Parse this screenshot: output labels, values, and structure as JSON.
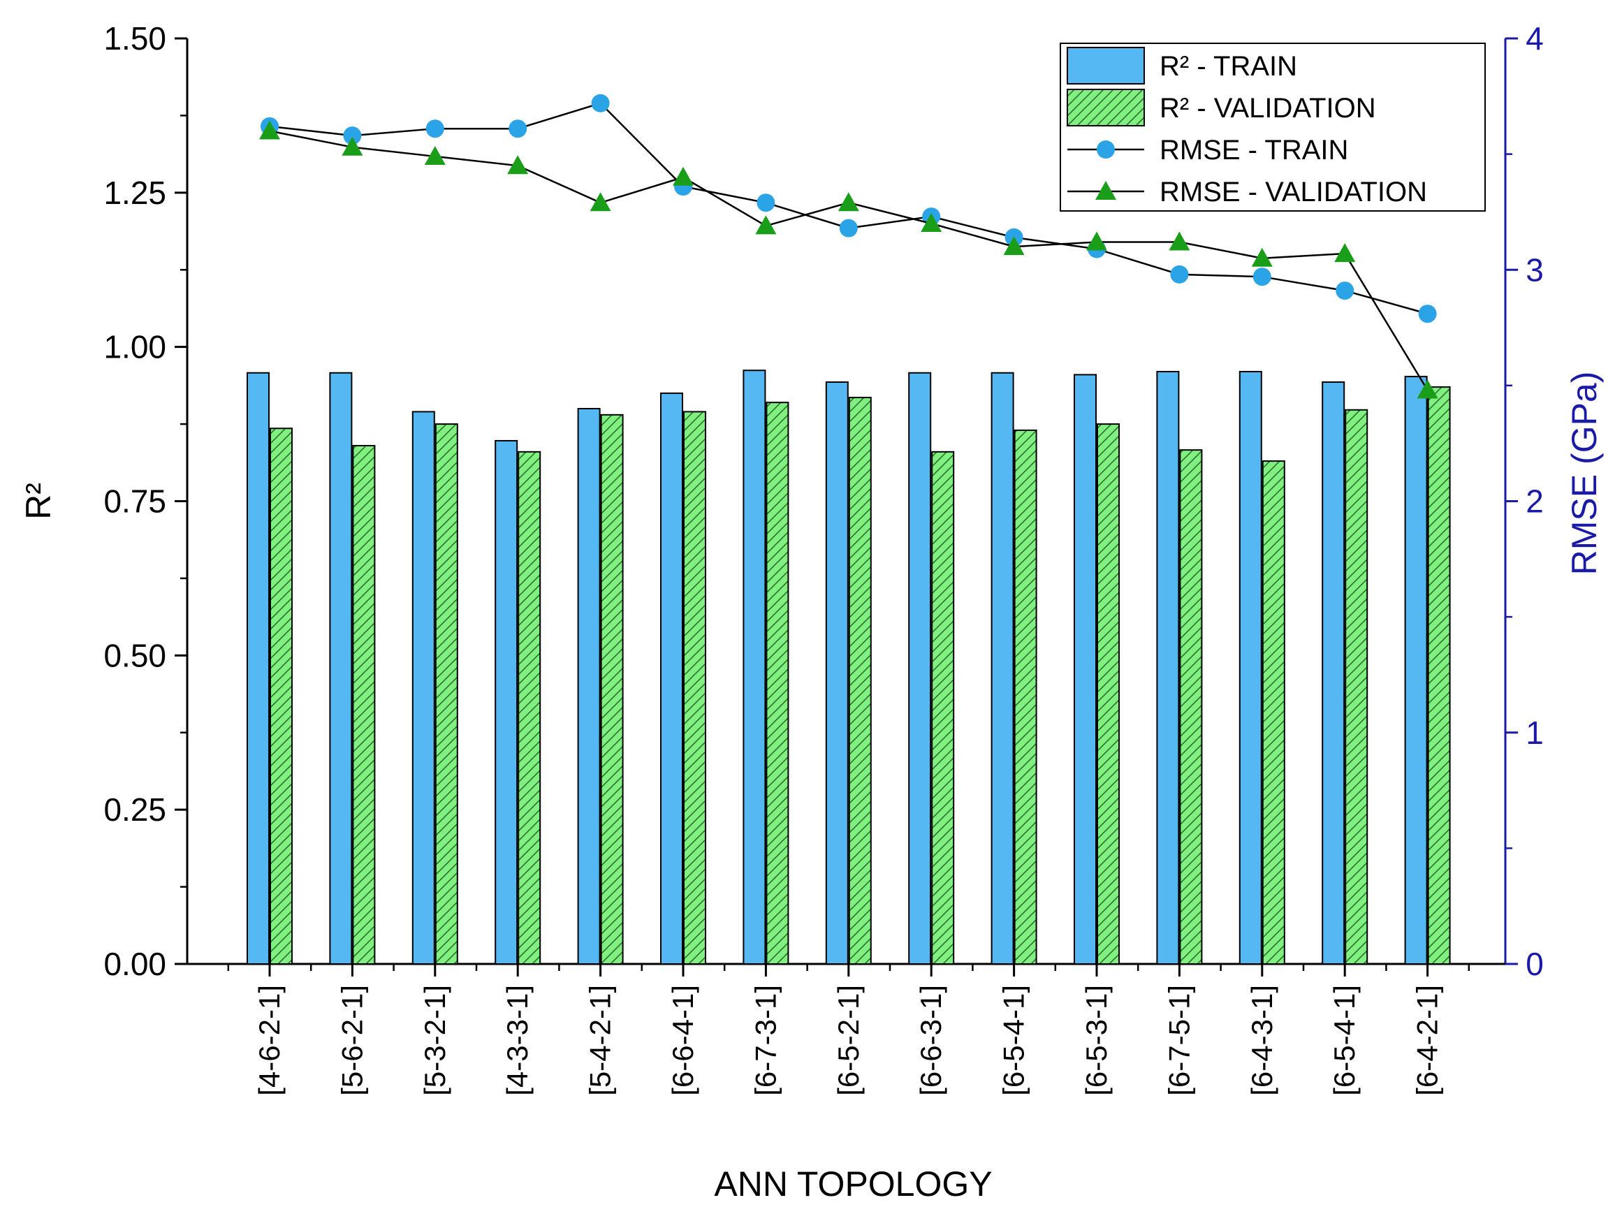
{
  "chart_data": {
    "type": "bar+line",
    "title": "",
    "xlabel": "ANN TOPOLOGY",
    "ylabel_left": "R²",
    "ylabel_right": "RMSE (GPa)",
    "ylim_left": [
      0,
      1.5
    ],
    "ylim_right": [
      0,
      4
    ],
    "left_ticks": [
      "0.00",
      "0.25",
      "0.50",
      "0.75",
      "1.00",
      "1.25",
      "1.50"
    ],
    "right_ticks": [
      "0",
      "1",
      "2",
      "3",
      "4"
    ],
    "categories": [
      "[4-6-2-1]",
      "[5-6-2-1]",
      "[5-3-2-1]",
      "[4-3-3-1]",
      "[5-4-2-1]",
      "[6-6-4-1]",
      "[6-7-3-1]",
      "[6-5-2-1]",
      "[6-6-3-1]",
      "[6-5-4-1]",
      "[6-5-3-1]",
      "[6-7-5-1]",
      "[6-4-3-1]",
      "[6-5-4-1]",
      "[6-4-2-1]"
    ],
    "series": [
      {
        "name": "R² - TRAIN",
        "axis": "left",
        "kind": "bar",
        "color": "#56b8f2",
        "values": [
          0.958,
          0.958,
          0.895,
          0.848,
          0.9,
          0.925,
          0.962,
          0.943,
          0.958,
          0.958,
          0.955,
          0.96,
          0.96,
          0.943,
          0.952
        ]
      },
      {
        "name": "R² - VALIDATION",
        "axis": "left",
        "kind": "bar",
        "color": "#80f080",
        "values": [
          0.868,
          0.84,
          0.875,
          0.83,
          0.89,
          0.895,
          0.91,
          0.918,
          0.83,
          0.865,
          0.875,
          0.833,
          0.815,
          0.898,
          0.935
        ]
      },
      {
        "name": "RMSE - TRAIN",
        "axis": "right",
        "kind": "line",
        "marker": "circle",
        "color": "#2aa4e6",
        "values": [
          3.62,
          3.58,
          3.61,
          3.61,
          3.72,
          3.36,
          3.29,
          3.18,
          3.23,
          3.14,
          3.09,
          2.98,
          2.97,
          2.91,
          2.81
        ]
      },
      {
        "name": "RMSE - VALIDATION",
        "axis": "right",
        "kind": "line",
        "marker": "triangle",
        "color": "#1a9e1a",
        "values": [
          3.6,
          3.53,
          3.49,
          3.45,
          3.29,
          3.4,
          3.19,
          3.29,
          3.2,
          3.1,
          3.12,
          3.12,
          3.05,
          3.07,
          2.48
        ]
      }
    ],
    "legend": {
      "position": "top-right",
      "entries": [
        "R² - TRAIN",
        "R² - VALIDATION",
        "RMSE - TRAIN",
        "RMSE - VALIDATION"
      ]
    }
  },
  "colors": {
    "bar_train": "#56b8f2",
    "bar_validation": "#80f080",
    "line": "#000000",
    "marker_train": "#2aa4e6",
    "marker_validation": "#1a9e1a",
    "right_axis": "#1a1aa6"
  }
}
